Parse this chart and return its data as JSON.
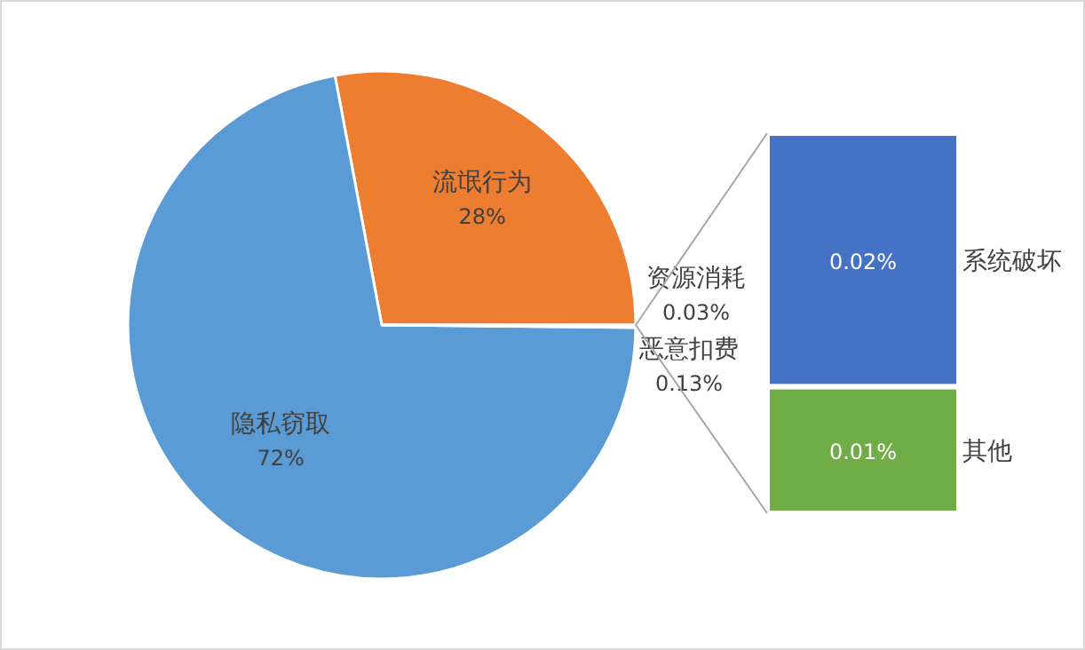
{
  "chart_data": [
    {
      "type": "pie",
      "categories": [
        "流氓行为",
        "隐私窃取",
        "恶意扣费",
        "资源消耗"
      ],
      "values": [
        28,
        72,
        0.13,
        0.03
      ],
      "colors": [
        "#ed7d31",
        "#5b9bd5",
        "#a5a5a5",
        "#ffc000"
      ],
      "value_labels": [
        "28%",
        "72%",
        "0.13%",
        "0.03%"
      ]
    },
    {
      "type": "bar",
      "stacked": true,
      "categories": [
        null
      ],
      "series": [
        {
          "name": "其他",
          "color": "#70ad47",
          "values": [
            0.01
          ],
          "value_labels": [
            "0.01%"
          ]
        },
        {
          "name": "系统破坏",
          "color": "#4472c4",
          "values": [
            0.02
          ],
          "value_labels": [
            "0.02%"
          ]
        }
      ]
    }
  ]
}
